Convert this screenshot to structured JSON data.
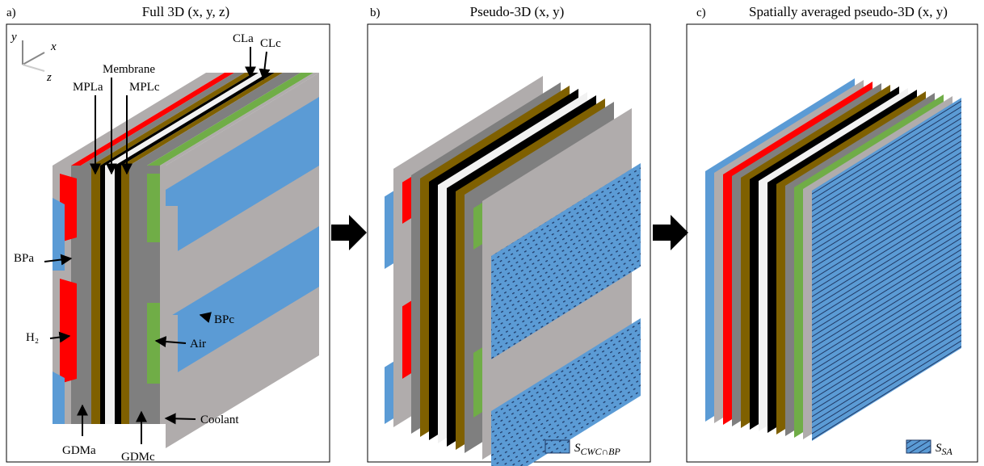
{
  "panels": [
    {
      "tag": "a)",
      "title": "Full 3D (x, y, z)",
      "axes": {
        "y": "y",
        "x": "x",
        "z": "z"
      },
      "labels": [
        "CLa",
        "CLc",
        "Membrane",
        "MPLa",
        "MPLc",
        "BPa",
        "H₂",
        "BPc",
        "Air",
        "Coolant",
        "GDMa",
        "GDMc"
      ]
    },
    {
      "tag": "b)",
      "title": "Pseudo-3D (x, y)",
      "legend": {
        "symbol": "S",
        "subscript": "CWC∩BP"
      }
    },
    {
      "tag": "c)",
      "title": "Spatially averaged pseudo-3D (x, y)",
      "legend": {
        "symbol": "S",
        "subscript": "SA"
      }
    }
  ]
}
